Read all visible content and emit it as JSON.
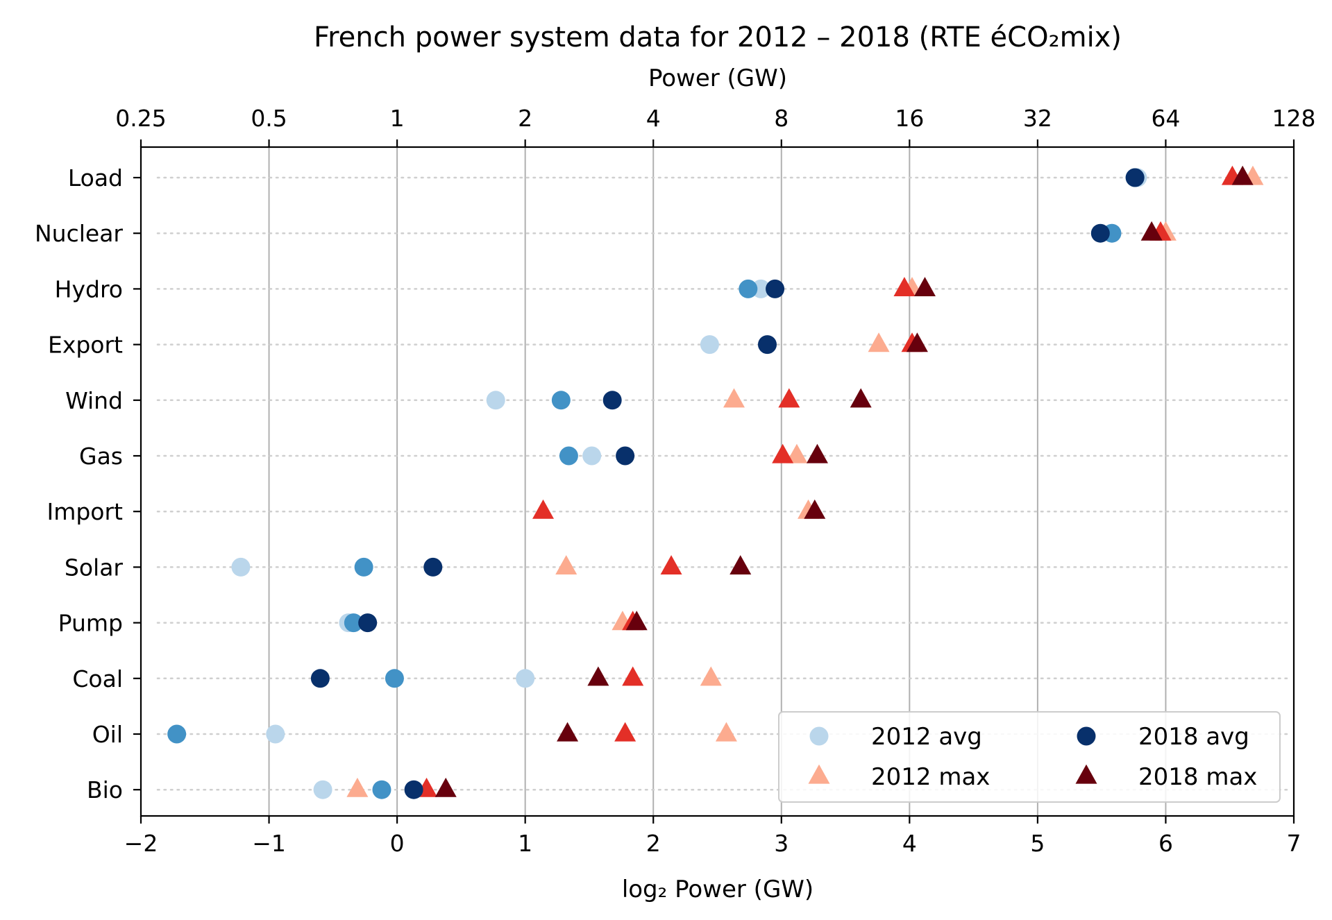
{
  "chart_data": {
    "type": "scatter",
    "title": "French power system data for 2012 – 2018 (RTE éCO₂mix)",
    "xlabel": "log₂ Power (GW)",
    "xlabel_top": "Power (GW)",
    "xlim": [
      -2,
      7
    ],
    "xticks": [
      -2,
      -1,
      0,
      1,
      2,
      3,
      4,
      5,
      6,
      7
    ],
    "xtick_labels": [
      "−2",
      "−1",
      "0",
      "1",
      "2",
      "3",
      "4",
      "5",
      "6",
      "7"
    ],
    "top_xticks": [
      -2,
      -1,
      0,
      1,
      2,
      3,
      4,
      5,
      6,
      7
    ],
    "top_xtick_labels": [
      "0.25",
      "0.5",
      "1",
      "2",
      "4",
      "8",
      "16",
      "32",
      "64",
      "128"
    ],
    "categories": [
      "Load",
      "Nuclear",
      "Hydro",
      "Export",
      "Wind",
      "Gas",
      "Import",
      "Solar",
      "Pump",
      "Coal",
      "Oil",
      "Bio"
    ],
    "grid": "vertical solid, horizontal dotted",
    "legend_position": "lower-right",
    "series": [
      {
        "name": "2012 avg",
        "marker": "circle",
        "color": "#bad6eb",
        "values": [
          5.78,
          5.58,
          2.84,
          2.44,
          0.77,
          1.52,
          null,
          -1.22,
          -0.38,
          1.0,
          -0.95,
          -0.58
        ]
      },
      {
        "name": "2012 max",
        "marker": "triangle",
        "color": "#fcab8f",
        "values": [
          6.68,
          6.0,
          4.02,
          3.76,
          2.63,
          3.12,
          3.21,
          1.32,
          1.76,
          2.45,
          2.57,
          -0.31
        ]
      },
      {
        "name": "2018 avg",
        "marker": "circle",
        "color": "#08306b",
        "values": [
          5.76,
          5.49,
          2.95,
          2.89,
          1.68,
          1.78,
          null,
          0.28,
          -0.23,
          -0.6,
          null,
          0.13
        ]
      },
      {
        "name": "2018 max",
        "marker": "triangle",
        "color": "#67000d",
        "values": [
          6.6,
          5.89,
          4.12,
          4.06,
          3.62,
          3.28,
          3.26,
          2.68,
          1.87,
          1.57,
          1.33,
          0.38
        ]
      },
      {
        "name": "",
        "marker": "circle",
        "color": "#4292c6",
        "values": [
          5.76,
          5.58,
          2.74,
          null,
          1.28,
          1.34,
          null,
          -0.26,
          -0.34,
          -0.02,
          -1.72,
          -0.12
        ]
      },
      {
        "name": "",
        "marker": "triangle",
        "color": "#e32f27",
        "values": [
          6.52,
          5.96,
          3.96,
          4.02,
          3.06,
          3.01,
          1.14,
          2.14,
          1.84,
          1.84,
          1.78,
          0.23
        ]
      }
    ]
  }
}
